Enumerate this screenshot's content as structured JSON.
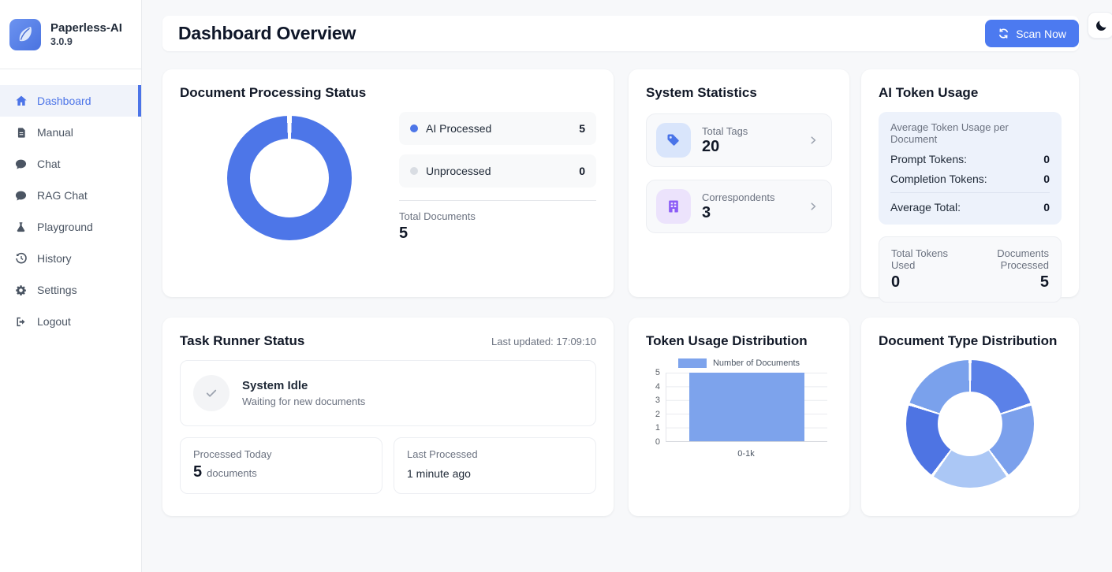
{
  "app": {
    "name": "Paperless-AI",
    "version": "3.0.9"
  },
  "sidebar": {
    "items": [
      {
        "label": "Dashboard"
      },
      {
        "label": "Manual"
      },
      {
        "label": "Chat"
      },
      {
        "label": "RAG Chat"
      },
      {
        "label": "Playground"
      },
      {
        "label": "History"
      },
      {
        "label": "Settings"
      },
      {
        "label": "Logout"
      }
    ]
  },
  "header": {
    "title": "Dashboard Overview",
    "scan_button_label": "Scan Now"
  },
  "cards": {
    "processing": {
      "title": "Document Processing Status",
      "legend": [
        {
          "label": "AI Processed",
          "value": "5",
          "color": "#4d76e8"
        },
        {
          "label": "Unprocessed",
          "value": "0",
          "color": "#d9dde3"
        }
      ],
      "total_label": "Total Documents",
      "total_value": "5"
    },
    "stats": {
      "title": "System Statistics",
      "items": [
        {
          "label": "Total Tags",
          "value": "20",
          "icon": "tag-icon",
          "icon_color": "#4a74e8",
          "icon_bg": "#d9e5fb"
        },
        {
          "label": "Correspondents",
          "value": "3",
          "icon": "building-icon",
          "icon_color": "#8b5cf6",
          "icon_bg": "#ece3fc"
        }
      ]
    },
    "token_usage": {
      "title": "AI Token Usage",
      "avg_box_title": "Average Token Usage per Document",
      "rows": [
        {
          "label": "Prompt Tokens:",
          "value": "0"
        },
        {
          "label": "Completion Tokens:",
          "value": "0"
        }
      ],
      "avg_total_label": "Average Total:",
      "avg_total_value": "0",
      "totals": [
        {
          "label": "Total Tokens Used",
          "value": "0"
        },
        {
          "label": "Documents Processed",
          "value": "5"
        }
      ]
    },
    "task_runner": {
      "title": "Task Runner Status",
      "last_updated": "Last updated: 17:09:10",
      "status_title": "System Idle",
      "status_subtitle": "Waiting for new documents",
      "processed_today_label": "Processed Today",
      "processed_today_value": "5",
      "processed_today_unit": "documents",
      "last_processed_label": "Last Processed",
      "last_processed_value": "1 minute ago"
    },
    "token_dist": {
      "title": "Token Usage Distribution"
    },
    "doc_type": {
      "title": "Document Type Distribution"
    }
  },
  "chart_data": [
    {
      "type": "doughnut",
      "title": "Document Processing Status",
      "labels": [
        "AI Processed",
        "Unprocessed"
      ],
      "values": [
        5,
        0
      ],
      "colors": [
        "#4d76e8",
        "#d9dde3"
      ],
      "total_documents": 5,
      "cutout": "63%",
      "legend_position": "right"
    },
    {
      "type": "bar",
      "title": "Token Usage Distribution",
      "categories": [
        "0-1k"
      ],
      "values": [
        5
      ],
      "series_label": "Number of Documents",
      "bar_color": "#7da3ec",
      "ylim": [
        0,
        5
      ],
      "yticks": [
        "5",
        "4",
        "3",
        "2",
        "1",
        "0"
      ],
      "grid": true,
      "legend_position": "top"
    },
    {
      "type": "doughnut",
      "title": "Document Type Distribution",
      "values": [
        1,
        1,
        1,
        1,
        1
      ],
      "colors": [
        "#5b81e8",
        "#7ba0ec",
        "#abc7f5",
        "#4e74e3",
        "#7aa1ec"
      ],
      "cutout": "51%",
      "labels_visible": false
    }
  ]
}
